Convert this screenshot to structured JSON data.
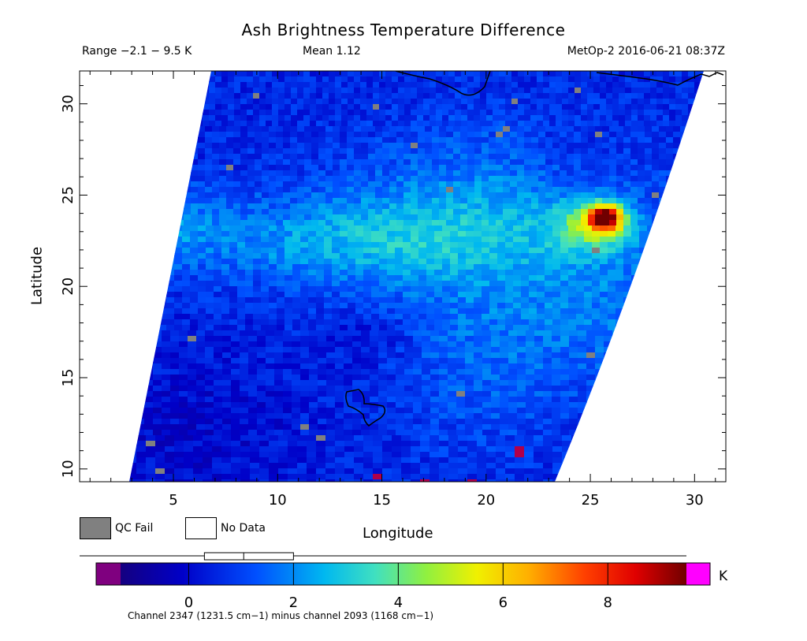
{
  "header": {
    "title": "Ash Brightness Temperature Difference",
    "range": "Range −2.1 − 9.5 K",
    "mean": "Mean 1.12",
    "satellite_time": "MetOp-2 2016-06-21 08:37Z"
  },
  "map": {
    "xlabel": "Longitude",
    "ylabel": "Latitude",
    "x_ticks": [
      "5",
      "10",
      "15",
      "20",
      "25",
      "30"
    ],
    "y_ticks": [
      "10",
      "15",
      "20",
      "25",
      "30"
    ],
    "lon_range": [
      0.5,
      31.5
    ],
    "lat_range": [
      9.3,
      31.8
    ],
    "hotspot": {
      "lon": 25.7,
      "lat": 23.8,
      "value": 8.5
    },
    "colors": {
      "qc_fail": "#808080",
      "no_data": "#ffffff",
      "coast": "#000000"
    }
  },
  "legend": {
    "qc_fail_label": "QC Fail",
    "no_data_label": "No Data"
  },
  "colorbar": {
    "ticks": [
      "0",
      "2",
      "4",
      "6",
      "8"
    ],
    "tick_values": [
      0,
      2,
      4,
      6,
      8
    ],
    "vmin": -1.3,
    "vmax": 9.5,
    "under_color": "#7f007f",
    "over_color": "#ff00ff",
    "unit": "K",
    "box": {
      "min": -2.1,
      "q1": 0.3,
      "median": 1.05,
      "q3": 2.0,
      "max": 9.5
    }
  },
  "footnote": "Channel 2347 (1231.5 cm−1) minus channel 2093 (1168 cm−1)"
}
